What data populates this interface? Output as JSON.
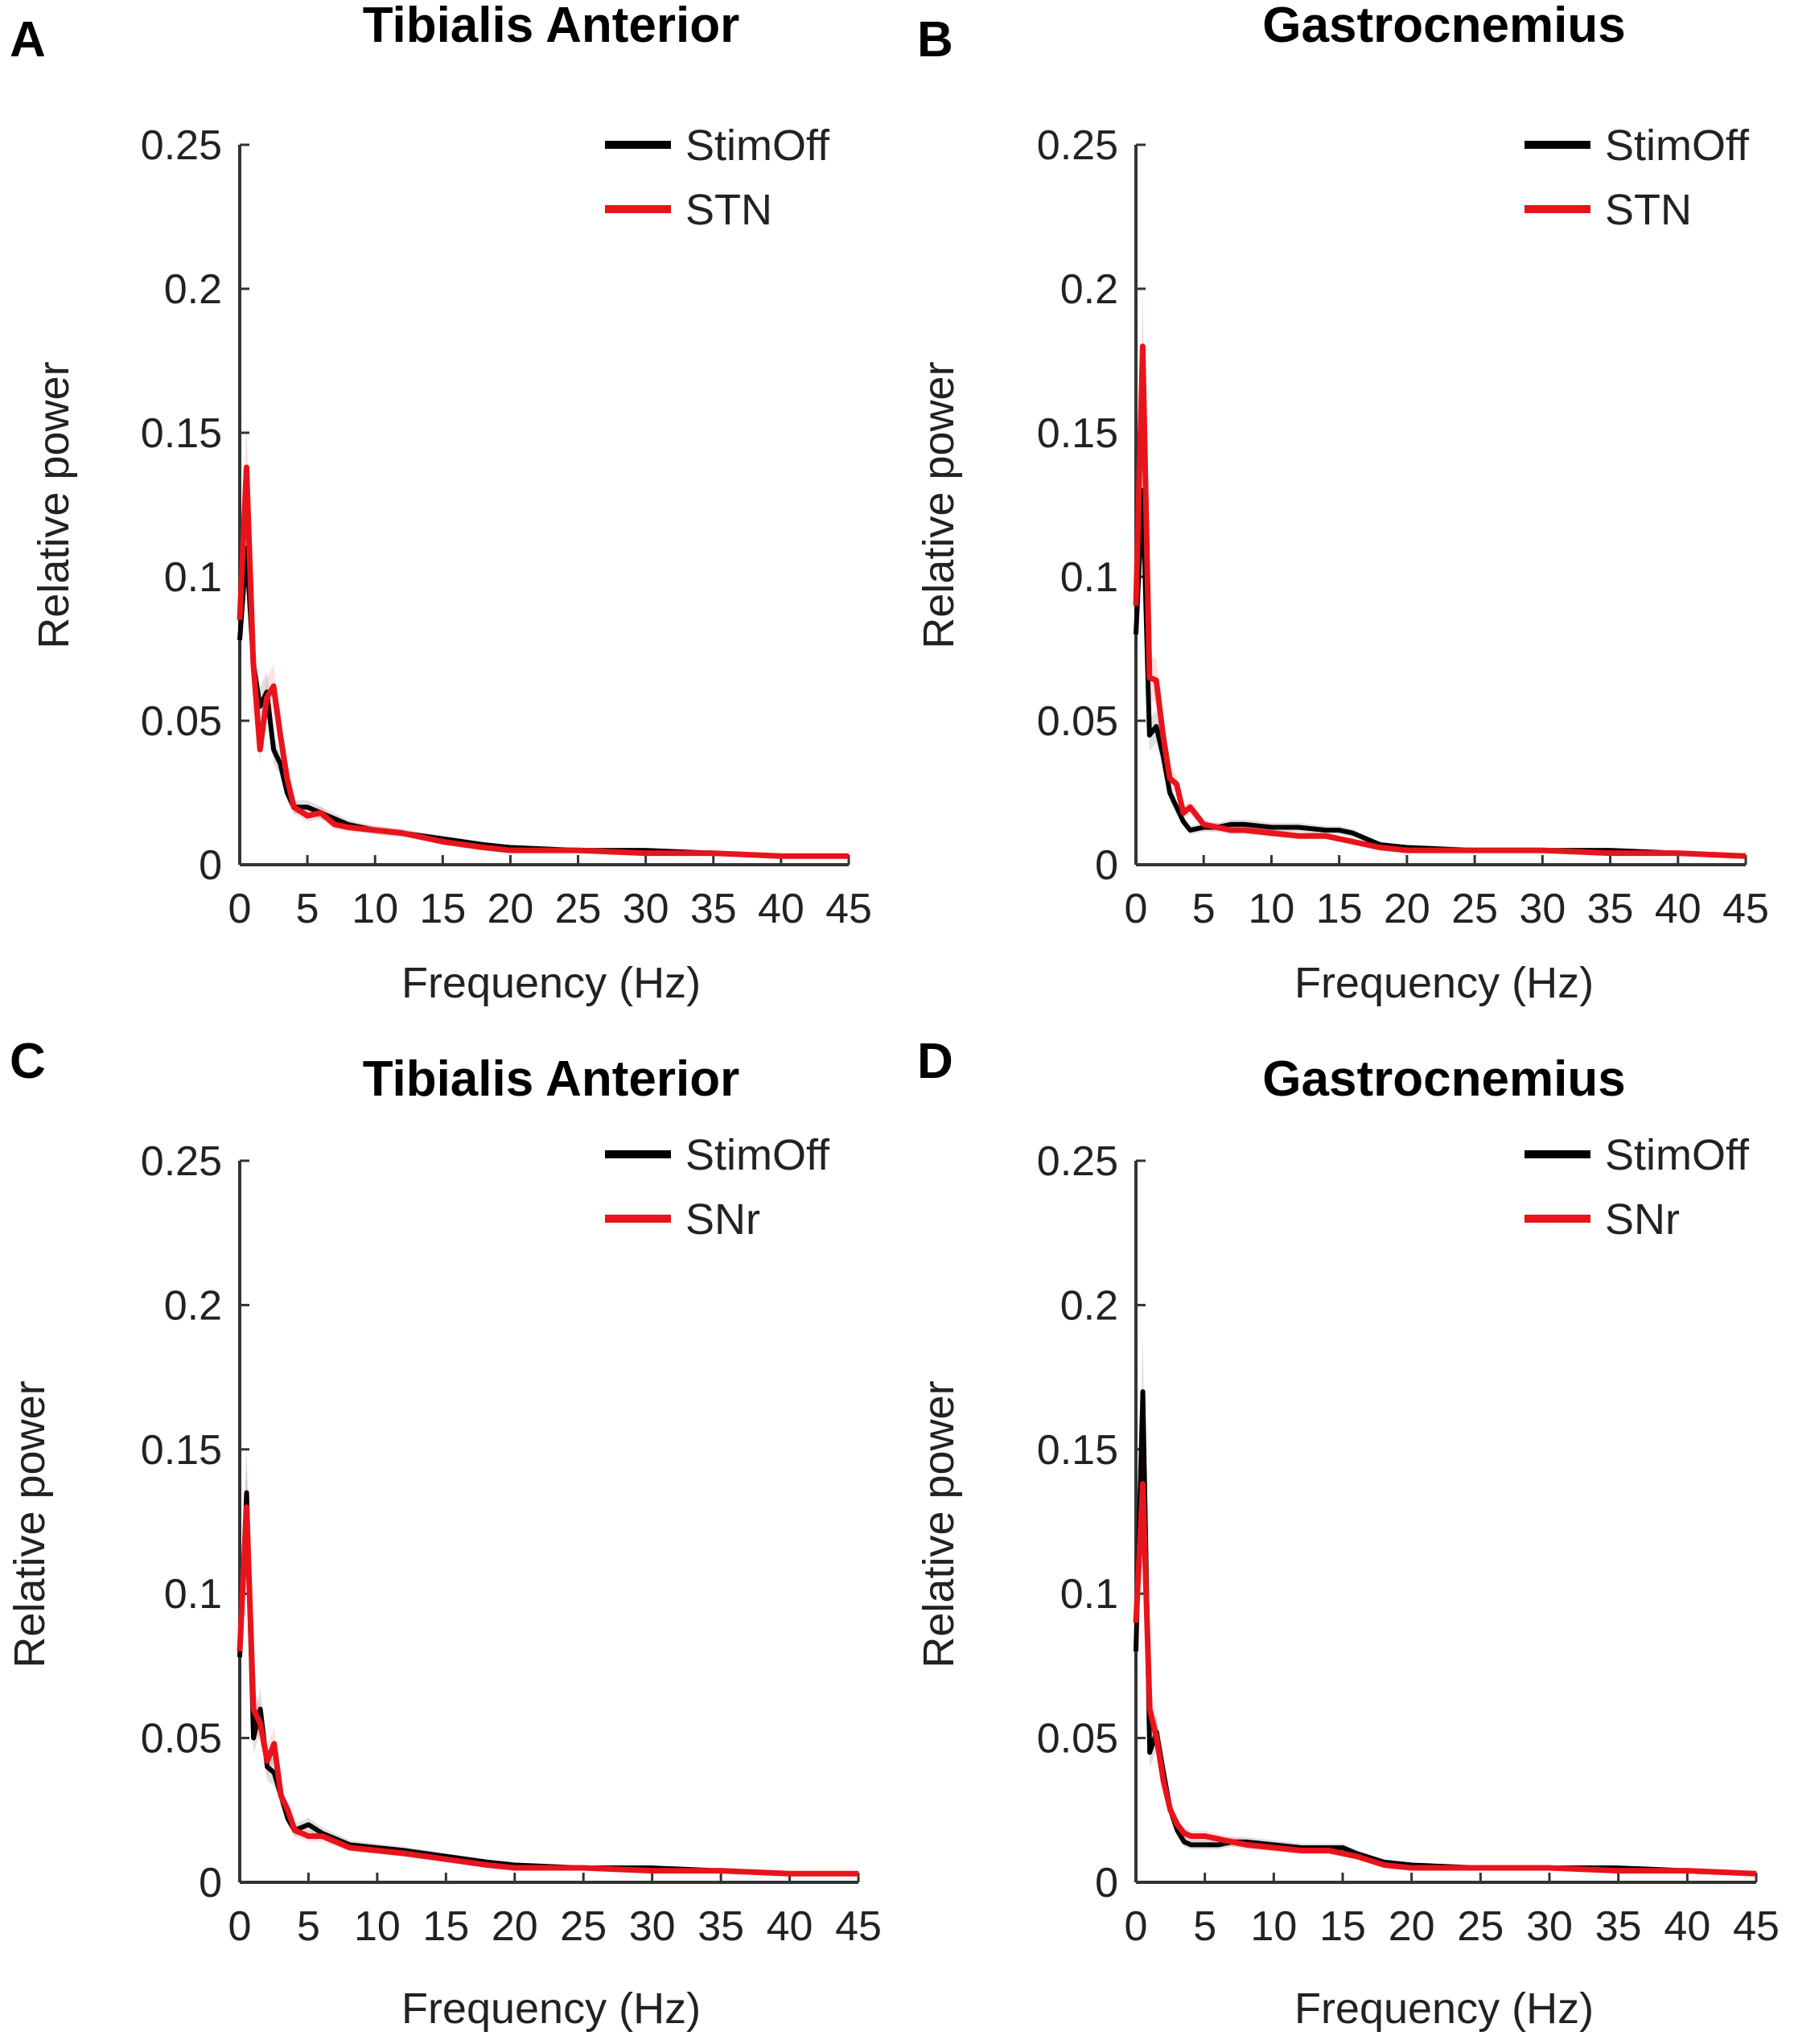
{
  "chart_data": [
    {
      "type": "line",
      "panel": "A",
      "title": "Tibialis Anterior",
      "xlabel": "Frequency (Hz)",
      "ylabel": "Relative power",
      "xlim": [
        0,
        45
      ],
      "ylim": [
        0,
        0.25
      ],
      "xticks": [
        "0",
        "5",
        "10",
        "15",
        "20",
        "25",
        "30",
        "35",
        "40",
        "45"
      ],
      "yticks": [
        "0",
        "0.05",
        "0.1",
        "0.15",
        "0.2",
        "0.25"
      ],
      "colors": {
        "StimOff": "#000000",
        "STN": "#e8141c"
      },
      "series": [
        {
          "name": "StimOff",
          "x": [
            0,
            0.5,
            1,
            1.5,
            2,
            2.5,
            3,
            3.5,
            4,
            5,
            6,
            7,
            8,
            10,
            12,
            15,
            18,
            20,
            25,
            30,
            35,
            40,
            45
          ],
          "y": [
            0.078,
            0.11,
            0.07,
            0.055,
            0.06,
            0.04,
            0.035,
            0.025,
            0.02,
            0.02,
            0.018,
            0.016,
            0.014,
            0.012,
            0.011,
            0.009,
            0.007,
            0.006,
            0.005,
            0.005,
            0.004,
            0.003,
            0.003
          ]
        },
        {
          "name": "STN",
          "x": [
            0,
            0.5,
            1,
            1.5,
            2,
            2.5,
            3,
            3.5,
            4,
            5,
            6,
            7,
            8,
            10,
            12,
            15,
            18,
            20,
            25,
            30,
            35,
            40,
            45
          ],
          "y": [
            0.085,
            0.138,
            0.07,
            0.04,
            0.058,
            0.062,
            0.045,
            0.03,
            0.02,
            0.017,
            0.018,
            0.014,
            0.013,
            0.012,
            0.011,
            0.008,
            0.006,
            0.005,
            0.005,
            0.004,
            0.004,
            0.003,
            0.003
          ]
        }
      ]
    },
    {
      "type": "line",
      "panel": "B",
      "title": "Gastrocnemius",
      "xlabel": "Frequency (Hz)",
      "ylabel": "Relative power",
      "xlim": [
        0,
        45
      ],
      "ylim": [
        0,
        0.25
      ],
      "xticks": [
        "0",
        "5",
        "10",
        "15",
        "20",
        "25",
        "30",
        "35",
        "40",
        "45"
      ],
      "yticks": [
        "0",
        "0.05",
        "0.1",
        "0.15",
        "0.2",
        "0.25"
      ],
      "colors": {
        "StimOff": "#000000",
        "STN": "#e8141c"
      },
      "series": [
        {
          "name": "StimOff",
          "x": [
            0,
            0.5,
            1,
            1.5,
            2,
            2.5,
            3,
            3.5,
            4,
            5,
            6,
            7,
            8,
            10,
            12,
            14,
            15,
            16,
            18,
            20,
            25,
            30,
            35,
            40,
            45
          ],
          "y": [
            0.08,
            0.13,
            0.045,
            0.048,
            0.038,
            0.025,
            0.02,
            0.015,
            0.012,
            0.013,
            0.013,
            0.014,
            0.014,
            0.013,
            0.013,
            0.012,
            0.012,
            0.011,
            0.007,
            0.006,
            0.005,
            0.005,
            0.005,
            0.004,
            0.003
          ]
        },
        {
          "name": "STN",
          "x": [
            0,
            0.5,
            1,
            1.5,
            2,
            2.5,
            3,
            3.5,
            4,
            5,
            6,
            7,
            8,
            10,
            12,
            14,
            15,
            16,
            18,
            20,
            25,
            30,
            35,
            40,
            45
          ],
          "y": [
            0.09,
            0.18,
            0.065,
            0.064,
            0.045,
            0.03,
            0.028,
            0.018,
            0.02,
            0.014,
            0.013,
            0.012,
            0.012,
            0.011,
            0.01,
            0.01,
            0.009,
            0.008,
            0.006,
            0.005,
            0.005,
            0.005,
            0.004,
            0.004,
            0.003
          ]
        }
      ]
    },
    {
      "type": "line",
      "panel": "C",
      "title": "Tibialis Anterior",
      "xlabel": "Frequency (Hz)",
      "ylabel": "Relative power",
      "xlim": [
        0,
        45
      ],
      "ylim": [
        0,
        0.25
      ],
      "xticks": [
        "0",
        "5",
        "10",
        "15",
        "20",
        "25",
        "30",
        "35",
        "40",
        "45"
      ],
      "yticks": [
        "0",
        "0.05",
        "0.1",
        "0.15",
        "0.2",
        "0.25"
      ],
      "colors": {
        "StimOff": "#000000",
        "SNr": "#e8141c"
      },
      "series": [
        {
          "name": "StimOff",
          "x": [
            0,
            0.5,
            1,
            1.5,
            2,
            2.5,
            3,
            3.5,
            4,
            5,
            6,
            7,
            8,
            10,
            12,
            15,
            18,
            20,
            25,
            30,
            35,
            40,
            45
          ],
          "y": [
            0.078,
            0.135,
            0.05,
            0.06,
            0.04,
            0.038,
            0.03,
            0.022,
            0.018,
            0.02,
            0.017,
            0.015,
            0.013,
            0.012,
            0.011,
            0.009,
            0.007,
            0.006,
            0.005,
            0.005,
            0.004,
            0.003,
            0.003
          ]
        },
        {
          "name": "SNr",
          "x": [
            0,
            0.5,
            1,
            1.5,
            2,
            2.5,
            3,
            3.5,
            4,
            5,
            6,
            7,
            8,
            10,
            12,
            15,
            18,
            20,
            25,
            30,
            35,
            40,
            45
          ],
          "y": [
            0.08,
            0.13,
            0.06,
            0.055,
            0.042,
            0.048,
            0.03,
            0.025,
            0.018,
            0.016,
            0.016,
            0.014,
            0.012,
            0.011,
            0.01,
            0.008,
            0.006,
            0.005,
            0.005,
            0.004,
            0.004,
            0.003,
            0.003
          ]
        }
      ]
    },
    {
      "type": "line",
      "panel": "D",
      "title": "Gastrocnemius",
      "xlabel": "Frequency (Hz)",
      "ylabel": "Relative power",
      "xlim": [
        0,
        45
      ],
      "ylim": [
        0,
        0.25
      ],
      "xticks": [
        "0",
        "5",
        "10",
        "15",
        "20",
        "25",
        "30",
        "35",
        "40",
        "45"
      ],
      "yticks": [
        "0",
        "0.05",
        "0.1",
        "0.15",
        "0.2",
        "0.25"
      ],
      "colors": {
        "StimOff": "#000000",
        "SNr": "#e8141c"
      },
      "series": [
        {
          "name": "StimOff",
          "x": [
            0,
            0.5,
            1,
            1.5,
            2,
            2.5,
            3,
            3.5,
            4,
            5,
            6,
            7,
            8,
            10,
            12,
            14,
            15,
            16,
            18,
            20,
            25,
            30,
            35,
            40,
            45
          ],
          "y": [
            0.08,
            0.17,
            0.045,
            0.052,
            0.038,
            0.025,
            0.018,
            0.014,
            0.013,
            0.013,
            0.013,
            0.014,
            0.014,
            0.013,
            0.012,
            0.012,
            0.012,
            0.01,
            0.007,
            0.006,
            0.005,
            0.005,
            0.005,
            0.004,
            0.003
          ]
        },
        {
          "name": "SNr",
          "x": [
            0,
            0.5,
            1,
            1.5,
            2,
            2.5,
            3,
            3.5,
            4,
            5,
            6,
            7,
            8,
            10,
            12,
            14,
            15,
            16,
            18,
            20,
            25,
            30,
            35,
            40,
            45
          ],
          "y": [
            0.09,
            0.138,
            0.06,
            0.05,
            0.035,
            0.025,
            0.02,
            0.017,
            0.016,
            0.016,
            0.015,
            0.014,
            0.013,
            0.012,
            0.011,
            0.011,
            0.01,
            0.009,
            0.006,
            0.005,
            0.005,
            0.005,
            0.004,
            0.004,
            0.003
          ]
        }
      ]
    }
  ]
}
